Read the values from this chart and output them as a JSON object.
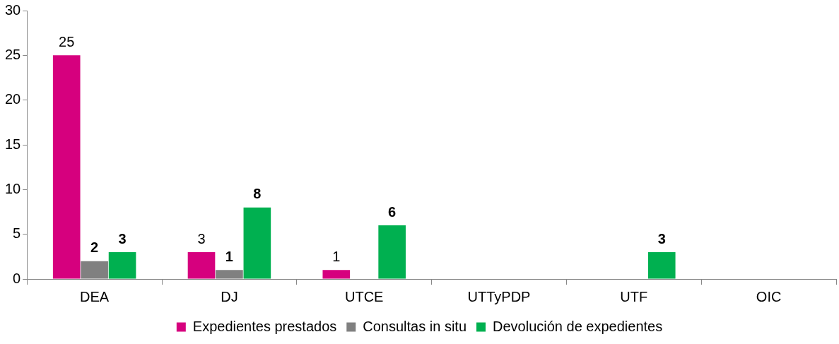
{
  "chart_data": {
    "type": "bar",
    "categories": [
      "DEA",
      "DJ",
      "UTCE",
      "UTTyPDP",
      "UTF",
      "OIC"
    ],
    "series": [
      {
        "name": "Expedientes prestados",
        "color": "#d6007e",
        "values": [
          25,
          3,
          1,
          null,
          null,
          null
        ]
      },
      {
        "name": "Consultas in situ",
        "color": "#808080",
        "values": [
          2,
          1,
          null,
          null,
          null,
          null
        ]
      },
      {
        "name": "Devolución de expedientes",
        "color": "#00b050",
        "values": [
          3,
          8,
          6,
          null,
          3,
          null
        ]
      }
    ],
    "ylim": [
      0,
      30
    ],
    "yticks": [
      0,
      5,
      10,
      15,
      20,
      25,
      30
    ],
    "grid": false,
    "legend": "bottom",
    "data_labels": true
  }
}
